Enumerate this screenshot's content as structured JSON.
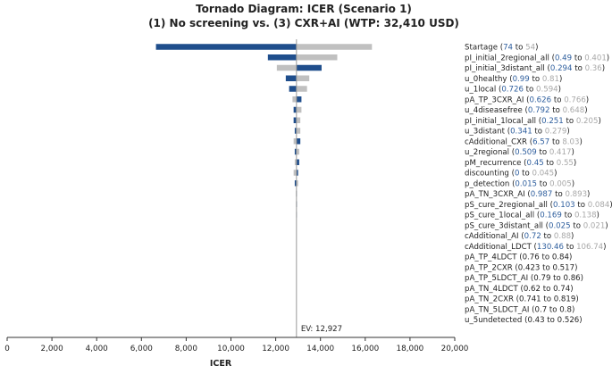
{
  "chart_data": {
    "type": "tornado",
    "title_line1": "Tornado Diagram: ICER (Scenario 1)",
    "title_line2": "(1) No screening vs. (3) CXR+AI (WTP: 32,410 USD)",
    "xlabel": "ICER",
    "xlim": [
      0,
      20000
    ],
    "xticks": [
      0,
      2000,
      4000,
      6000,
      8000,
      10000,
      12000,
      14000,
      16000,
      18000,
      20000
    ],
    "xtick_labels": [
      "0",
      "2,000",
      "4,000",
      "6,000",
      "8,000",
      "10,000",
      "12,000",
      "14,000",
      "16,000",
      "18,000",
      "20,000"
    ],
    "ev_value": 12927,
    "ev_label": "EV: 12,927",
    "colors": {
      "low_bar": "#1f4e8c",
      "high_bar": "#c0c0c0",
      "low_text": "#2f5f9e",
      "high_text": "#a8a8a8",
      "ev_line": "#9a9a9a"
    },
    "parameters": [
      {
        "name": "Startage",
        "low": "74",
        "high": "54",
        "blue_bound": 6650,
        "gray_bound": 16300
      },
      {
        "name": "pI_initial_2regional_all",
        "low": "0.49",
        "high": "0.401",
        "blue_bound": 11650,
        "gray_bound": 14750
      },
      {
        "name": "pI_initial_3distant_all",
        "low": "0.294",
        "high": "0.36",
        "blue_bound": 14050,
        "gray_bound": 12050
      },
      {
        "name": "u_0healthy",
        "low": "0.99",
        "high": "0.81",
        "blue_bound": 12450,
        "gray_bound": 13500
      },
      {
        "name": "u_1local",
        "low": "0.726",
        "high": "0.594",
        "blue_bound": 12600,
        "gray_bound": 13400
      },
      {
        "name": "pA_TP_3CXR_AI",
        "low": "0.626",
        "high": "0.766",
        "blue_bound": 13150,
        "gray_bound": 12750
      },
      {
        "name": "u_4diseasefree",
        "low": "0.792",
        "high": "0.648",
        "blue_bound": 12800,
        "gray_bound": 13150
      },
      {
        "name": "pI_initial_1local_all",
        "low": "0.251",
        "high": "0.205",
        "blue_bound": 12800,
        "gray_bound": 13100
      },
      {
        "name": "u_3distant",
        "low": "0.341",
        "high": "0.279",
        "blue_bound": 12850,
        "gray_bound": 13100
      },
      {
        "name": "cAdditional_CXR",
        "low": "6.57",
        "high": "8.03",
        "blue_bound": 13100,
        "gray_bound": 12800
      },
      {
        "name": "u_2regional",
        "low": "0.509",
        "high": "0.417",
        "blue_bound": 12850,
        "gray_bound": 13050
      },
      {
        "name": "pM_recurrence",
        "low": "0.45",
        "high": "0.55",
        "blue_bound": 13050,
        "gray_bound": 12850
      },
      {
        "name": "discounting",
        "low": "0",
        "high": "0.045",
        "blue_bound": 13000,
        "gray_bound": 12800
      },
      {
        "name": "p_detection",
        "low": "0.015",
        "high": "0.005",
        "blue_bound": 12850,
        "gray_bound": 13000
      },
      {
        "name": "pA_TN_3CXR_AI",
        "low": "0.987",
        "high": "0.893",
        "blue_bound": 12940,
        "gray_bound": 12900
      },
      {
        "name": "pS_cure_2regional_all",
        "low": "0.103",
        "high": "0.084",
        "blue_bound": 12945,
        "gray_bound": 12905
      },
      {
        "name": "pS_cure_1local_all",
        "low": "0.169",
        "high": "0.138",
        "blue_bound": 12940,
        "gray_bound": 12910
      },
      {
        "name": "pS_cure_3distant_all",
        "low": "0.025",
        "high": "0.021",
        "blue_bound": 12935,
        "gray_bound": 12915
      },
      {
        "name": "cAdditional_AI",
        "low": "0.72",
        "high": "0.88",
        "blue_bound": 12927,
        "gray_bound": 12927
      },
      {
        "name": "cAdditional_LDCT",
        "low": "130.46",
        "high": "106.74",
        "blue_bound": 12927,
        "gray_bound": 12927
      },
      {
        "name": "pA_TP_4LDCT",
        "low": "0.76",
        "high": "0.84",
        "blue_bound": 12927,
        "gray_bound": 12927
      },
      {
        "name": "pA_TP_2CXR",
        "low": "0.423",
        "high": "0.517",
        "blue_bound": 12927,
        "gray_bound": 12927
      },
      {
        "name": "pA_TP_5LDCT_AI",
        "low": "0.79",
        "high": "0.86",
        "blue_bound": 12927,
        "gray_bound": 12927
      },
      {
        "name": "pA_TN_4LDCT",
        "low": "0.62",
        "high": "0.74",
        "blue_bound": 12927,
        "gray_bound": 12927
      },
      {
        "name": "pA_TN_2CXR",
        "low": "0.741",
        "high": "0.819",
        "blue_bound": 12927,
        "gray_bound": 12927
      },
      {
        "name": "pA_TN_5LDCT_AI",
        "low": "0.7",
        "high": "0.8",
        "blue_bound": 12927,
        "gray_bound": 12927
      },
      {
        "name": "u_5undetected",
        "low": "0.43",
        "high": "0.526",
        "blue_bound": 12927,
        "gray_bound": 12927
      }
    ],
    "colored_label_count": 20
  }
}
